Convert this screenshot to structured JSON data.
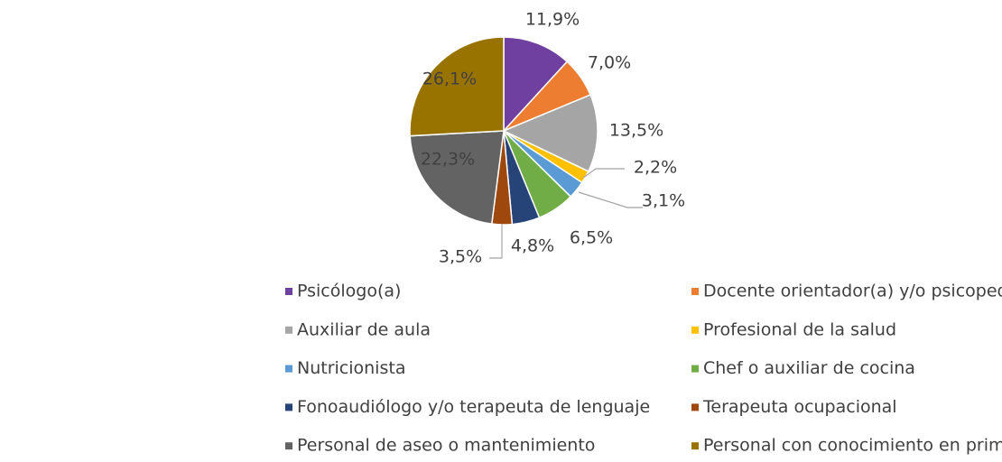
{
  "chart_data": {
    "type": "pie",
    "categories": [
      "Psicólogo(a)",
      "Docente orientador(a) y/o psicopedagogo(a)",
      "Auxiliar de aula",
      "Profesional de la salud",
      "Nutricionista",
      "Chef o auxiliar de cocina",
      "Fonoaudiólogo y/o terapeuta de lenguaje",
      "Terapeuta ocupacional",
      "Personal de aseo o mantenimiento",
      "Personal con conocimiento en primeros auxilios"
    ],
    "values": [
      11.9,
      7.0,
      13.5,
      2.2,
      3.1,
      6.5,
      4.8,
      3.5,
      22.3,
      26.1
    ],
    "value_labels": [
      "11,9%",
      "7,0%",
      "13,5%",
      "2,2%",
      "3,1%",
      "6,5%",
      "4,8%",
      "3,5%",
      "22,3%",
      "26,1%"
    ],
    "colors": [
      "#7040a0",
      "#ed7d31",
      "#a5a5a5",
      "#ffc000",
      "#5b9bd5",
      "#70ad47",
      "#264478",
      "#9e480e",
      "#636363",
      "#997300"
    ],
    "legend": "bottom"
  }
}
